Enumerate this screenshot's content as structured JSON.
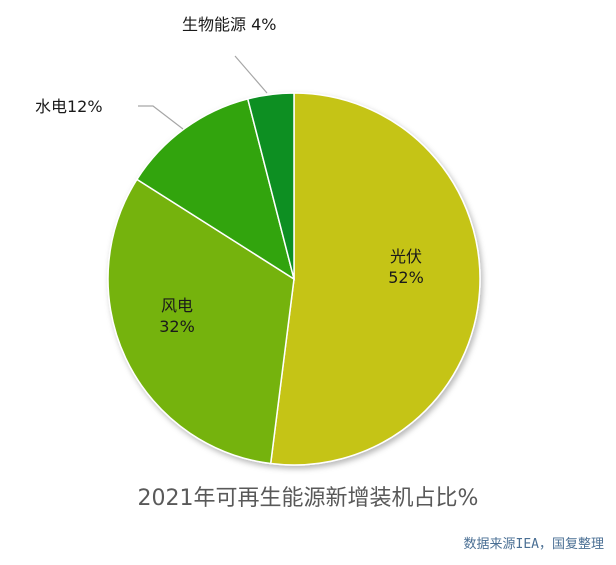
{
  "chart_data": {
    "type": "pie",
    "title": "2021年可再生能源新增装机占比%",
    "slices": [
      {
        "label": "光伏",
        "value": 52,
        "value_text": "52%",
        "color": "#c5c418",
        "label_position": "inside"
      },
      {
        "label": "风电",
        "value": 32,
        "value_text": "32%",
        "color": "#74b30f",
        "label_position": "inside"
      },
      {
        "label": "水电",
        "value": 12,
        "value_text": "12%",
        "color": "#30a40d",
        "label_position": "outside"
      },
      {
        "label": "生物能源",
        "value": 4,
        "value_text": "4%",
        "color": "#0a8f21",
        "label_position": "outside"
      }
    ],
    "start_angle": "12 o'clock",
    "direction": "clockwise"
  },
  "source_note": "数据来源IEA，国复整理"
}
